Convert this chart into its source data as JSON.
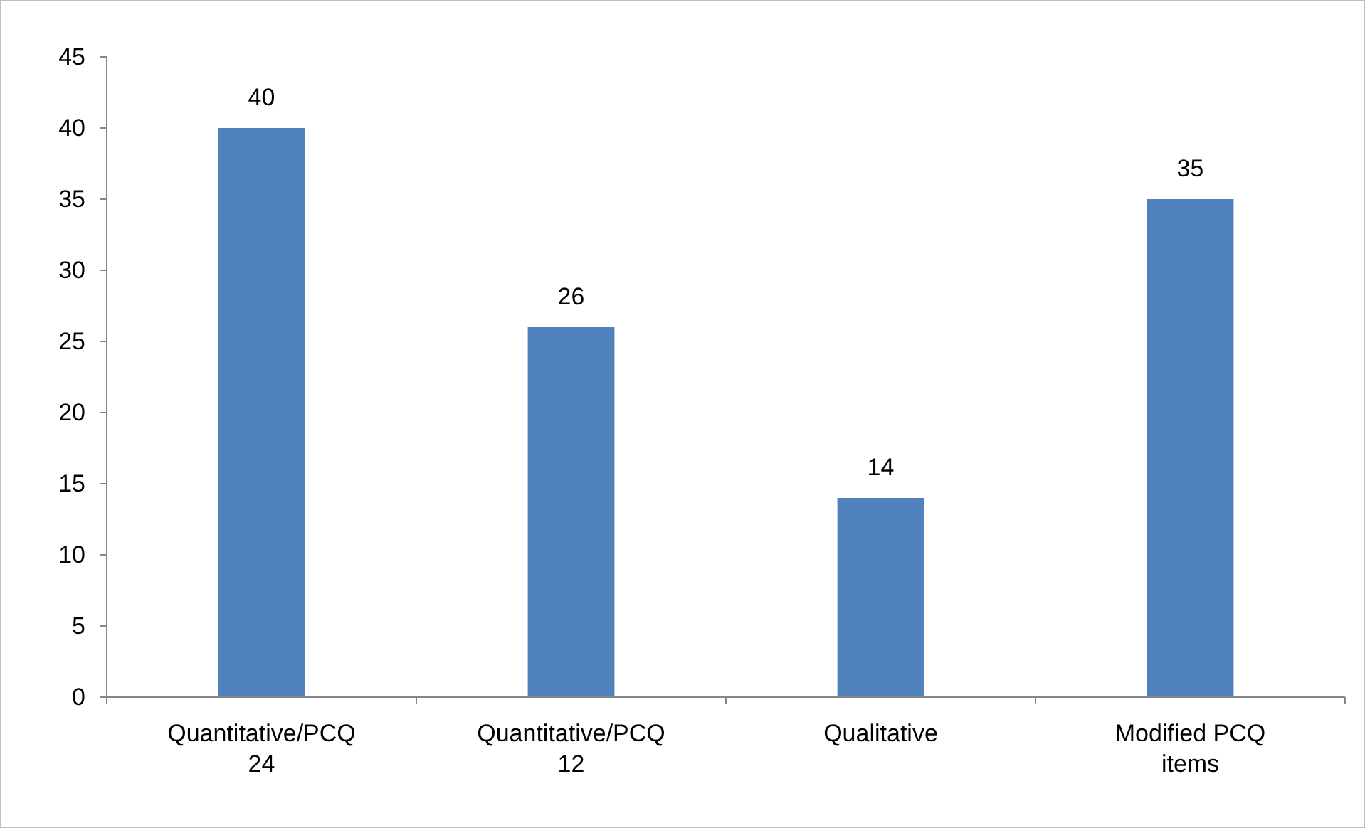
{
  "chart_data": {
    "type": "bar",
    "categories": [
      "Quantitative/PCQ 24",
      "Quantitative/PCQ 12",
      "Qualitative",
      "Modified PCQ items"
    ],
    "values": [
      40,
      26,
      14,
      35
    ],
    "color": "#4f81bd",
    "ylim": [
      0,
      45
    ],
    "yticks": [
      0,
      5,
      10,
      15,
      20,
      25,
      30,
      35,
      40,
      45
    ],
    "grid": false,
    "data_labels": true
  }
}
